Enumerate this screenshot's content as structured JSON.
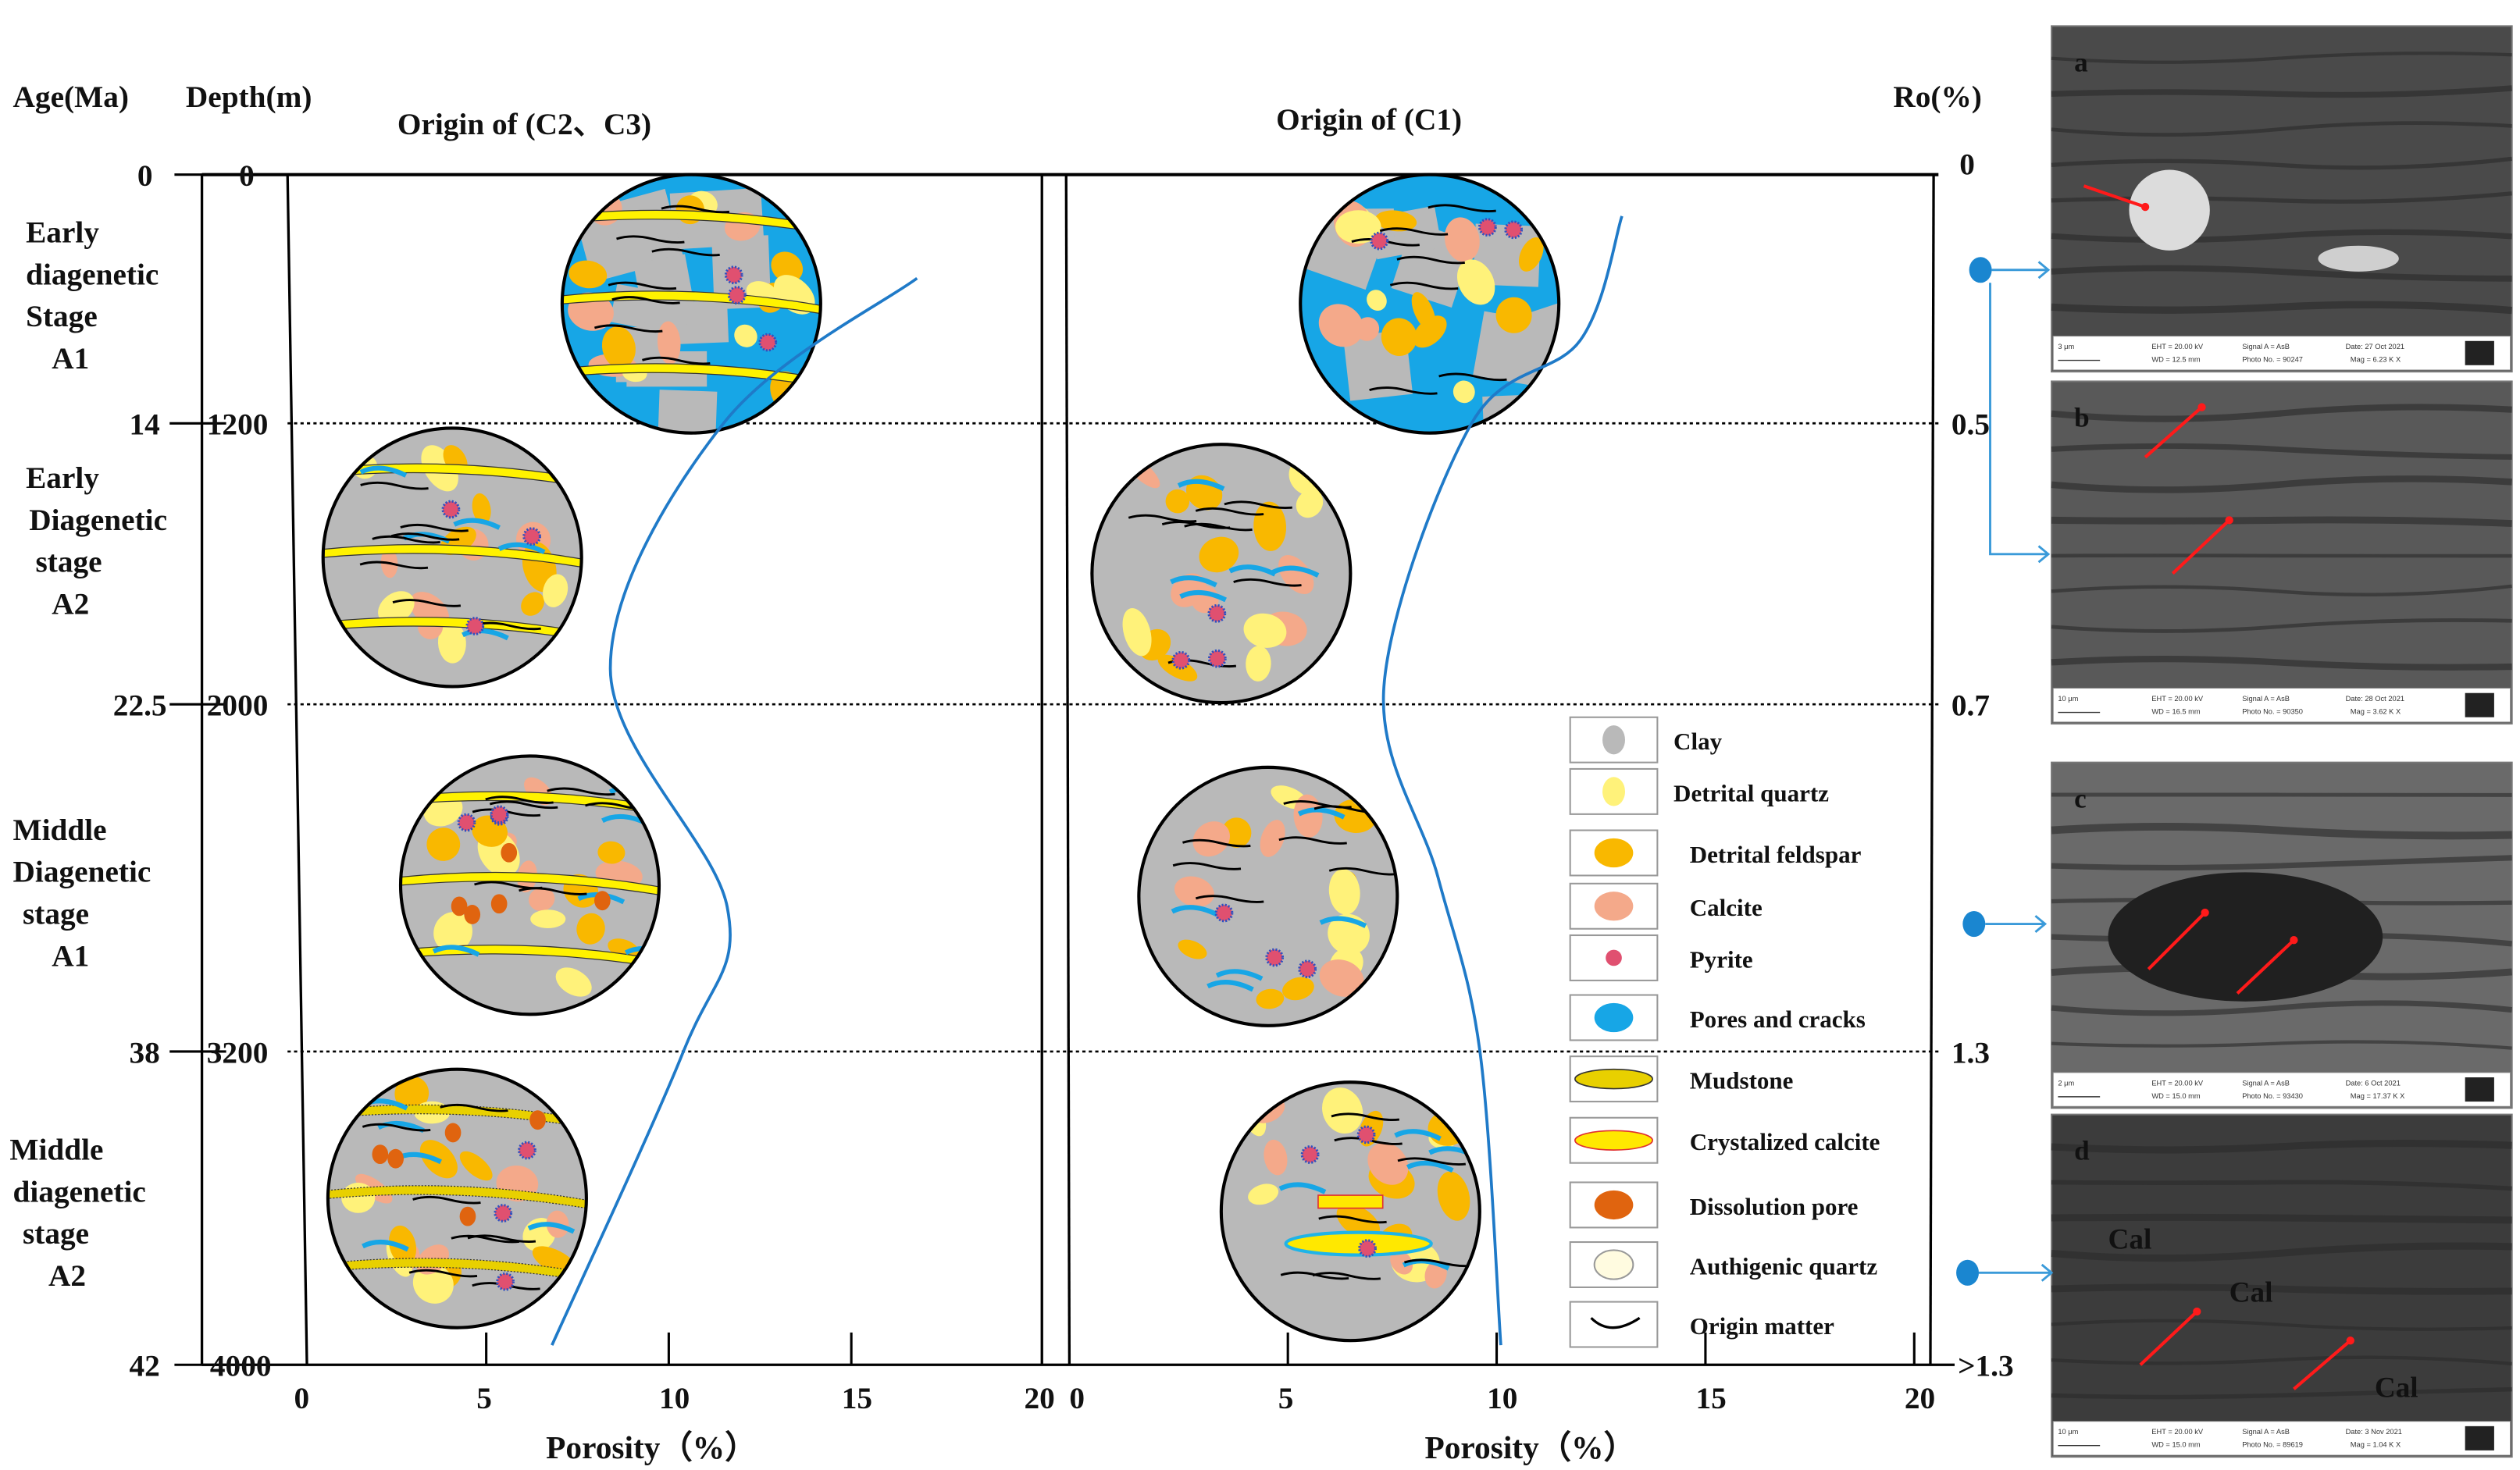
{
  "axes": {
    "age_label": "Age(Ma)",
    "depth_label": "Depth(m)",
    "ro_label": "Ro(%)",
    "age_ticks": [
      "0",
      "14",
      "22.5",
      "38",
      "42"
    ],
    "depth_ticks": [
      "0",
      "1200",
      "2000",
      "3200",
      "4000"
    ],
    "ro_ticks": [
      "0",
      "0.5",
      "0.7",
      "1.3",
      ">1.3"
    ],
    "porosity_ticks": [
      "0",
      "5",
      "10",
      "15",
      "20"
    ],
    "porosity_label": "Porosity（%）"
  },
  "panels": {
    "left_title": "Origin of (C2、C3)",
    "right_title": "Origin of (C1)"
  },
  "stages": [
    {
      "lines": [
        "Early",
        "diagenetic",
        "Stage",
        "A1"
      ]
    },
    {
      "lines": [
        "Early",
        "Diagenetic",
        "stage",
        "A2"
      ]
    },
    {
      "lines": [
        "Middle",
        "Diagenetic",
        "stage",
        "A1"
      ]
    },
    {
      "lines": [
        "Middle",
        "diagenetic",
        "stage",
        "A2"
      ]
    }
  ],
  "porosity_curves": {
    "depth_breaks_m": [
      0,
      1200,
      2000,
      3200,
      4000
    ],
    "left": [
      [
        500,
        16.8
      ],
      [
        1200,
        11.5
      ],
      [
        1900,
        8.4
      ],
      [
        2700,
        11.6
      ],
      [
        3200,
        10.4
      ],
      [
        3950,
        6.8
      ]
    ],
    "right": [
      [
        200,
        13.0
      ],
      [
        800,
        12.0
      ],
      [
        1200,
        9.4
      ],
      [
        1950,
        7.3
      ],
      [
        2600,
        8.6
      ],
      [
        3200,
        9.6
      ],
      [
        3950,
        10.1
      ]
    ]
  },
  "legend": [
    {
      "label": "Clay",
      "icon": "clay-icon"
    },
    {
      "label": "Detrital quartz",
      "icon": "detrital-quartz-icon"
    },
    {
      "label": "Detrital feldspar",
      "icon": "detrital-feldspar-icon"
    },
    {
      "label": "Calcite",
      "icon": "calcite-icon"
    },
    {
      "label": "Pyrite",
      "icon": "pyrite-icon"
    },
    {
      "label": "Pores and cracks",
      "icon": "pores-icon"
    },
    {
      "label": "Mudstone",
      "icon": "mudstone-icon"
    },
    {
      "label": "Crystalized calcite",
      "icon": "crystalized-calcite-icon"
    },
    {
      "label": "Dissolution pore",
      "icon": "dissolution-pore-icon"
    },
    {
      "label": "Authigenic quartz",
      "icon": "authigenic-quartz-icon"
    },
    {
      "label": "Origin matter",
      "icon": "origin-matter-icon"
    }
  ],
  "colors": {
    "clay": "#b9b9b9",
    "quartz": "#fff27a",
    "feldspar": "#f9b800",
    "calcite": "#f4a98a",
    "pore": "#17a6e6",
    "dissolution": "#e0640f",
    "curve": "#1f7ac8",
    "label_yellow": "#ffff33"
  },
  "sem_images": [
    {
      "letter": "a",
      "scale": "3 μm",
      "eht": "EHT = 20.00 kV",
      "wd": "WD = 12.5 mm",
      "signal": "Signal A = AsB",
      "photo": "Photo No. = 90247",
      "date": "Date: 27 Oct 2021",
      "mag": "Mag = 6.23 K X",
      "labels": []
    },
    {
      "letter": "b",
      "scale": "10 μm",
      "eht": "EHT = 20.00 kV",
      "wd": "WD = 16.5 mm",
      "signal": "Signal A = AsB",
      "photo": "Photo No. = 90350",
      "date": "Date: 28 Oct 2021",
      "mag": "Mag = 3.62 K X",
      "labels": []
    },
    {
      "letter": "c",
      "scale": "2 μm",
      "eht": "EHT = 20.00 kV",
      "wd": "WD = 15.0 mm",
      "signal": "Signal A = AsB",
      "photo": "Photo No. = 93430",
      "date": "Date: 6 Oct 2021",
      "mag": "Mag = 17.37 K X",
      "labels": []
    },
    {
      "letter": "d",
      "scale": "10 μm",
      "eht": "EHT = 20.00 kV",
      "wd": "WD = 15.0 mm",
      "signal": "Signal A = AsB",
      "photo": "Photo No. = 89619",
      "date": "Date: 3 Nov 2021",
      "mag": "Mag = 1.04 K X",
      "labels": [
        "Cal",
        "Cal",
        "Cal"
      ]
    }
  ]
}
